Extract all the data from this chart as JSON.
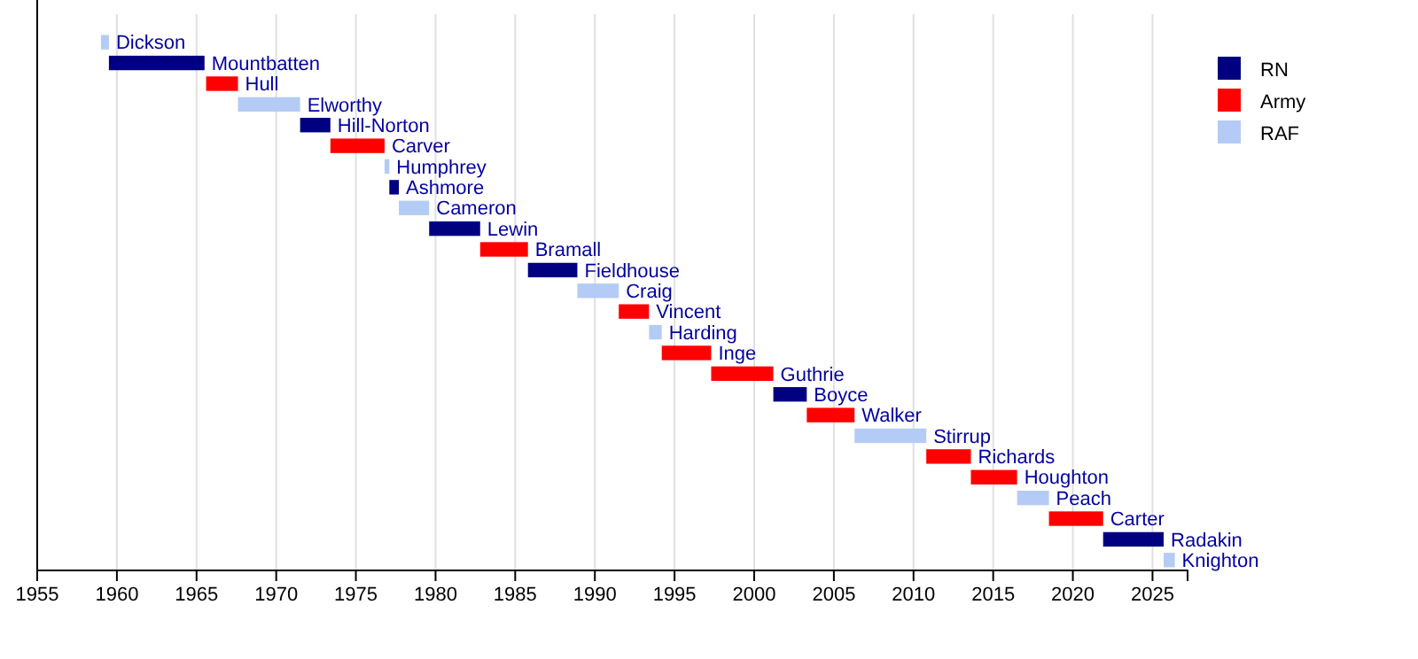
{
  "chart_data": {
    "type": "bar",
    "orientation": "horizontal",
    "categories": [
      "Dickson",
      "Mountbatten",
      "Hull",
      "Elworthy",
      "Hill-Norton",
      "Carver",
      "Humphrey",
      "Ashmore",
      "Cameron",
      "Lewin",
      "Bramall",
      "Fieldhouse",
      "Craig",
      "Vincent",
      "Harding",
      "Inge",
      "Guthrie",
      "Boyce",
      "Walker",
      "Stirrup",
      "Richards",
      "Houghton",
      "Peach",
      "Carter",
      "Radakin",
      "Knighton"
    ],
    "series": [
      {
        "name": "RN",
        "color": "#000080",
        "base": [
          null,
          1959.5,
          null,
          null,
          1971.5,
          null,
          null,
          1977.1,
          null,
          1979.6,
          null,
          1985.8,
          null,
          null,
          null,
          null,
          null,
          2001.2,
          null,
          null,
          null,
          null,
          null,
          null,
          2021.9,
          null
        ],
        "values": [
          null,
          6.0,
          null,
          null,
          1.9,
          null,
          null,
          0.6,
          null,
          3.2,
          null,
          3.1,
          null,
          null,
          null,
          null,
          null,
          2.1,
          null,
          null,
          null,
          null,
          null,
          null,
          3.8,
          null
        ]
      },
      {
        "name": "Army",
        "color": "#ff0000",
        "base": [
          null,
          null,
          1965.6,
          null,
          null,
          1973.4,
          null,
          null,
          null,
          null,
          1982.8,
          null,
          null,
          1991.5,
          null,
          1994.2,
          1997.3,
          null,
          2003.3,
          null,
          2010.8,
          2013.6,
          null,
          2018.5,
          null,
          null
        ],
        "values": [
          null,
          null,
          2.0,
          null,
          null,
          3.4,
          null,
          null,
          null,
          null,
          3.0,
          null,
          null,
          1.9,
          null,
          3.1,
          3.9,
          null,
          3.0,
          null,
          2.8,
          2.9,
          null,
          3.4,
          null,
          null
        ]
      },
      {
        "name": "RAF",
        "color": "#b4ccf5",
        "base": [
          1959.0,
          null,
          null,
          1967.6,
          null,
          null,
          1976.8,
          null,
          1977.7,
          null,
          null,
          null,
          1988.9,
          null,
          1993.4,
          null,
          null,
          null,
          null,
          2006.3,
          null,
          null,
          2016.5,
          null,
          null,
          2025.7
        ],
        "values": [
          0.5,
          null,
          null,
          3.9,
          null,
          null,
          0.3,
          null,
          1.9,
          null,
          null,
          null,
          2.6,
          null,
          0.8,
          null,
          null,
          null,
          null,
          4.5,
          null,
          null,
          2.0,
          null,
          null,
          0.7
        ]
      }
    ],
    "xlim": [
      1955,
      2027.2
    ],
    "xticks": [
      1955,
      1960,
      1965,
      1970,
      1975,
      1980,
      1985,
      1990,
      1995,
      2000,
      2005,
      2010,
      2015,
      2020,
      2025
    ],
    "grid": "x",
    "legend": "top right"
  }
}
